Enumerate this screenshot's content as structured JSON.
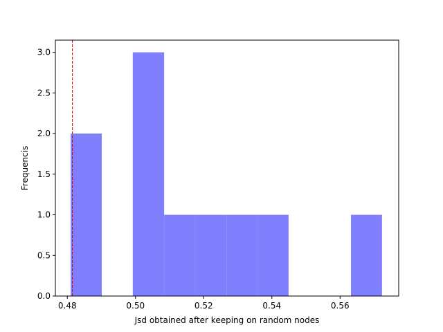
{
  "chart_data": {
    "type": "bar",
    "subtype": "histogram",
    "xlabel": "Jsd obtained after keeping on random nodes",
    "ylabel": "Frequencis",
    "xlim": [
      0.4765,
      0.5772
    ],
    "ylim": [
      0,
      3.15
    ],
    "x_ticks": [
      {
        "value": 0.48,
        "label": "0.48"
      },
      {
        "value": 0.5,
        "label": "0.50"
      },
      {
        "value": 0.52,
        "label": "0.52"
      },
      {
        "value": 0.54,
        "label": "0.54"
      },
      {
        "value": 0.56,
        "label": "0.56"
      }
    ],
    "y_ticks": [
      {
        "value": 0.0,
        "label": "0.0"
      },
      {
        "value": 0.5,
        "label": "0.5"
      },
      {
        "value": 1.0,
        "label": "1.0"
      },
      {
        "value": 1.5,
        "label": "1.5"
      },
      {
        "value": 2.0,
        "label": "2.0"
      },
      {
        "value": 2.5,
        "label": "2.5"
      },
      {
        "value": 3.0,
        "label": "3.0"
      }
    ],
    "bins": [
      {
        "start": 0.481,
        "end": 0.4901,
        "count": 2
      },
      {
        "start": 0.4901,
        "end": 0.4992,
        "count": 0
      },
      {
        "start": 0.4992,
        "end": 0.5084,
        "count": 3
      },
      {
        "start": 0.5084,
        "end": 0.5175,
        "count": 1
      },
      {
        "start": 0.5175,
        "end": 0.5267,
        "count": 1
      },
      {
        "start": 0.5267,
        "end": 0.5358,
        "count": 1
      },
      {
        "start": 0.5358,
        "end": 0.5449,
        "count": 1
      },
      {
        "start": 0.5449,
        "end": 0.554,
        "count": 0
      },
      {
        "start": 0.554,
        "end": 0.5632,
        "count": 0
      },
      {
        "start": 0.5632,
        "end": 0.5723,
        "count": 1
      }
    ],
    "reference_line": {
      "x": 0.4815,
      "color": "#cc0000",
      "style": "dashed"
    },
    "bar_color": "#8080ff",
    "grid": false,
    "legend": "none"
  }
}
